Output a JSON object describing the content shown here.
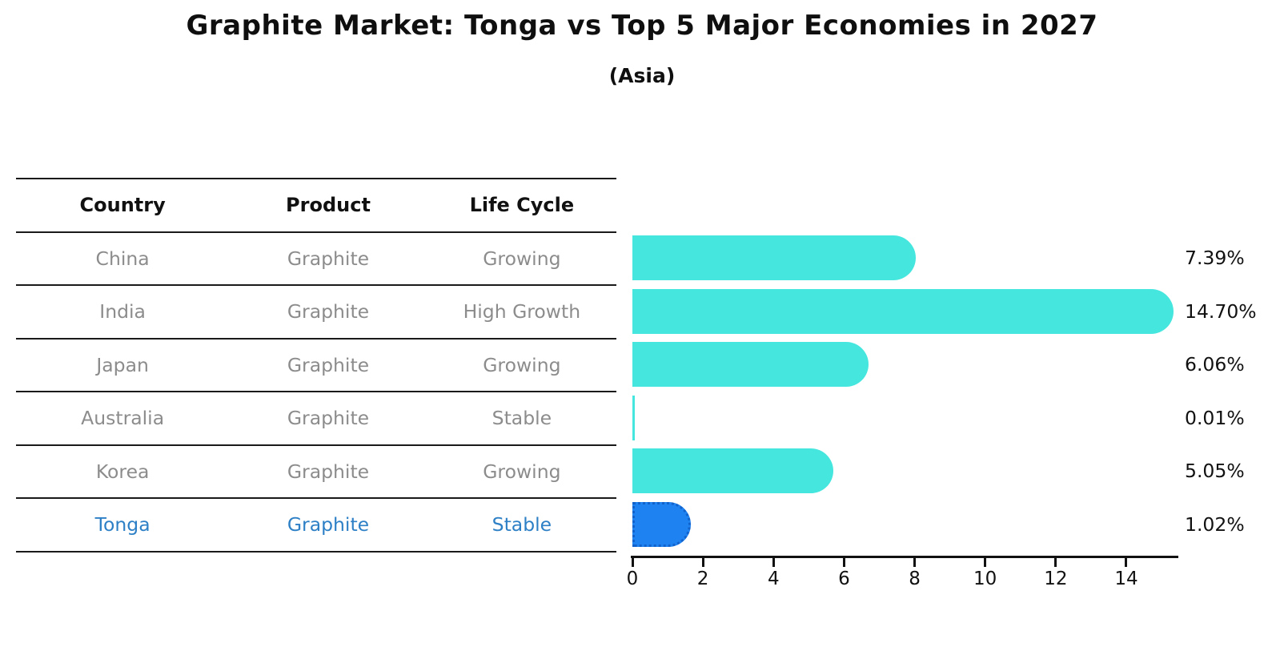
{
  "title": "Graphite Market: Tonga vs Top 5 Major Economies in 2027",
  "subtitle": "(Asia)",
  "table": {
    "headers": [
      "Country",
      "Product",
      "Life Cycle"
    ],
    "rows": [
      {
        "country": "China",
        "product": "Graphite",
        "life_cycle": "Growing",
        "highlight": false
      },
      {
        "country": "India",
        "product": "Graphite",
        "life_cycle": "High Growth",
        "highlight": false
      },
      {
        "country": "Japan",
        "product": "Graphite",
        "life_cycle": "Growing",
        "highlight": false
      },
      {
        "country": "Australia",
        "product": "Graphite",
        "life_cycle": "Stable",
        "highlight": false
      },
      {
        "country": "Korea",
        "product": "Graphite",
        "life_cycle": "Growing",
        "highlight": false
      },
      {
        "country": "Tonga",
        "product": "Graphite",
        "life_cycle": "Stable",
        "highlight": true
      }
    ]
  },
  "chart_data": {
    "type": "bar",
    "orientation": "horizontal",
    "title": "Graphite Market: Tonga vs Top 5 Major Economies in 2027",
    "subtitle": "(Asia)",
    "categories": [
      "China",
      "India",
      "Japan",
      "Australia",
      "Korea",
      "Tonga"
    ],
    "values": [
      7.39,
      14.7,
      6.06,
      0.01,
      5.05,
      1.02
    ],
    "value_labels": [
      "7.39%",
      "14.70%",
      "6.06%",
      "0.01%",
      "5.05%",
      "1.02%"
    ],
    "xticks": [
      0,
      2,
      4,
      6,
      8,
      10,
      12,
      14
    ],
    "xlim": [
      0,
      15.5
    ],
    "xlabel": "",
    "ylabel": "",
    "grid": false,
    "legend": "none",
    "highlight_index": 5
  },
  "colors": {
    "bar": "#45E6DE",
    "highlight_bar": "#1E82F0",
    "highlight_border": "#1262CC",
    "highlight_text": "#2E80C6",
    "muted_text": "#8C8C8C",
    "header_text": "#111111",
    "value_text": "#111111",
    "axis": "#111111"
  }
}
